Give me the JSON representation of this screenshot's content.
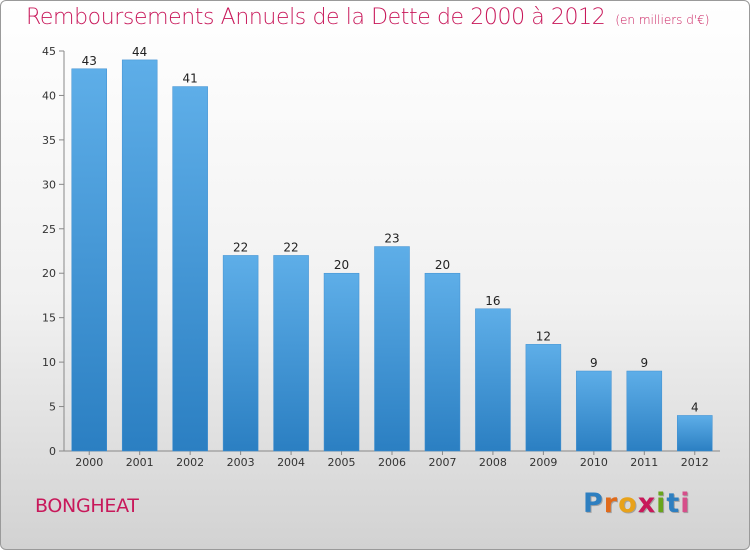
{
  "header": {
    "title": "Remboursements Annuels de la Dette de 2000 à 2012",
    "subtitle": "(en milliers d'€)"
  },
  "footer": {
    "commune": "BONGHEAT",
    "brand": [
      "P",
      "r",
      "o",
      "x",
      "i",
      "t",
      "i"
    ],
    "brand_colors": [
      "#2e7fc0",
      "#e06a1a",
      "#e8a21a",
      "#c8185a",
      "#69a51c",
      "#2e7fc0",
      "#d64f8a"
    ]
  },
  "chart_data": {
    "type": "bar",
    "categories": [
      "2000",
      "2001",
      "2002",
      "2003",
      "2004",
      "2005",
      "2006",
      "2007",
      "2008",
      "2009",
      "2010",
      "2011",
      "2012"
    ],
    "values": [
      43,
      44,
      41,
      22,
      22,
      20,
      23,
      20,
      16,
      12,
      9,
      9,
      4
    ],
    "ylim": [
      0,
      45
    ],
    "yticks": [
      0,
      5,
      10,
      15,
      20,
      25,
      30,
      35,
      40,
      45
    ],
    "grid": false,
    "bar_color_top": "#5eaee8",
    "bar_color_bottom": "#2b7fc2",
    "label_color": "#222222"
  }
}
